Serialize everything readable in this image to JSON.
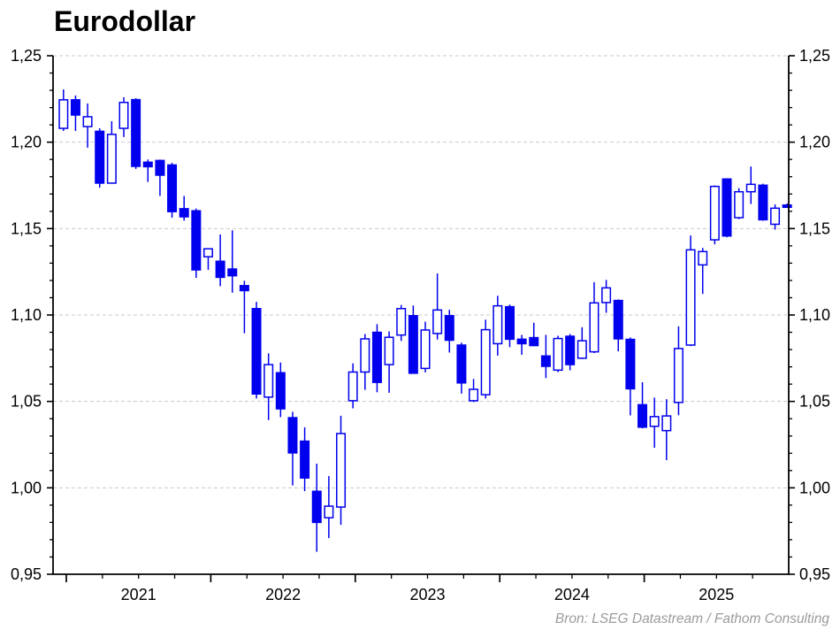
{
  "title": "Eurodollar",
  "source": "Bron: LSEG Datastream / Fathom Consulting",
  "colors": {
    "candle_blue": "#0000ee",
    "up_body_fill": "#ffffff",
    "grid": "#c9c9c9",
    "axis": "#000000",
    "label_text": "#000000",
    "source_text": "#9b9b9b",
    "background": "#ffffff"
  },
  "y_axis": {
    "min": 0.95,
    "max": 1.25,
    "major_step": 0.05,
    "minor_step": 0.01,
    "decimal_separator": ",",
    "major_labels": [
      "1,25",
      "1,20",
      "1,15",
      "1,10",
      "1,05",
      "1,00",
      "0,95"
    ],
    "sides": "both"
  },
  "x_axis": {
    "year_labels": [
      "2021",
      "2022",
      "2023",
      "2024",
      "2025"
    ],
    "minor_tick_interval_months": 3,
    "major_tick_interval_months": 12
  },
  "chart_data": {
    "type": "candlestick",
    "frequency": "monthly",
    "up_style": "hollow",
    "down_style": "filled",
    "title": "Eurodollar",
    "ylim": [
      0.95,
      1.25
    ],
    "grid": "dashed-horizontal",
    "legend": "none",
    "candles": {
      "columns": [
        "month",
        "open",
        "high",
        "low",
        "close"
      ],
      "rows": [
        [
          "2020-12",
          1.208,
          1.2305,
          1.2065,
          1.2245
        ],
        [
          "2021-01",
          1.2245,
          1.227,
          1.2065,
          1.2157
        ],
        [
          "2021-02",
          1.209,
          1.2224,
          1.1968,
          1.2147
        ],
        [
          "2021-03",
          1.2063,
          1.208,
          1.1737,
          1.1763
        ],
        [
          "2021-04",
          1.1763,
          1.2121,
          1.176,
          1.2045
        ],
        [
          "2021-05",
          1.208,
          1.226,
          1.203,
          1.223
        ],
        [
          "2021-06",
          1.2246,
          1.2254,
          1.1845,
          1.186
        ],
        [
          "2021-07",
          1.1884,
          1.19,
          1.177,
          1.1858
        ],
        [
          "2021-08",
          1.1894,
          1.1899,
          1.1689,
          1.1809
        ],
        [
          "2021-09",
          1.1868,
          1.188,
          1.1563,
          1.1598
        ],
        [
          "2021-10",
          1.1615,
          1.1689,
          1.1546,
          1.1568
        ],
        [
          "2021-11",
          1.1603,
          1.1616,
          1.1215,
          1.1261
        ],
        [
          "2021-12",
          1.1337,
          1.1386,
          1.1261,
          1.1383
        ],
        [
          "2022-01",
          1.1311,
          1.1466,
          1.1167,
          1.1218
        ],
        [
          "2022-02",
          1.1266,
          1.149,
          1.1129,
          1.1227
        ],
        [
          "2022-03",
          1.117,
          1.1198,
          1.0894,
          1.1141
        ],
        [
          "2022-04",
          1.1037,
          1.1076,
          1.0517,
          1.0543
        ],
        [
          "2022-05",
          1.0525,
          1.0778,
          1.0392,
          1.0713
        ],
        [
          "2022-06",
          1.0666,
          1.0725,
          1.0409,
          1.0457
        ],
        [
          "2022-07",
          1.0406,
          1.044,
          1.0014,
          1.0202
        ],
        [
          "2022-08",
          1.027,
          1.035,
          0.9981,
          1.0057
        ],
        [
          "2022-09",
          0.998,
          1.014,
          0.963,
          0.98
        ],
        [
          "2022-10",
          0.9827,
          1.0068,
          0.9709,
          0.9894
        ],
        [
          "2022-11",
          0.9889,
          1.0417,
          0.9786,
          1.0314
        ],
        [
          "2022-12",
          1.0504,
          1.072,
          1.046,
          1.067
        ],
        [
          "2023-01",
          1.067,
          1.089,
          1.0567,
          1.0862
        ],
        [
          "2023-02",
          1.09,
          1.0947,
          1.0553,
          1.061
        ],
        [
          "2023-03",
          1.0713,
          1.0905,
          1.055,
          1.0871
        ],
        [
          "2023-04",
          1.0884,
          1.1058,
          1.085,
          1.1037
        ],
        [
          "2023-05",
          1.0996,
          1.1055,
          1.066,
          1.0663
        ],
        [
          "2023-06",
          1.0691,
          1.0961,
          1.0668,
          1.0913
        ],
        [
          "2023-07",
          1.0893,
          1.124,
          1.0858,
          1.1029
        ],
        [
          "2023-08",
          1.0996,
          1.103,
          1.0783,
          1.0854
        ],
        [
          "2023-09",
          1.0826,
          1.084,
          1.0545,
          1.0607
        ],
        [
          "2023-10",
          1.0504,
          1.063,
          1.0496,
          1.057
        ],
        [
          "2023-11",
          1.0539,
          1.0973,
          1.0517,
          1.0915
        ],
        [
          "2023-12",
          1.0834,
          1.1111,
          1.0765,
          1.1053
        ],
        [
          "2024-01",
          1.1048,
          1.106,
          1.0814,
          1.086
        ],
        [
          "2024-02",
          1.086,
          1.0885,
          1.077,
          1.0834
        ],
        [
          "2024-03",
          1.0869,
          1.0955,
          1.082,
          1.0823
        ],
        [
          "2024-04",
          1.0763,
          1.0885,
          1.0635,
          1.0703
        ],
        [
          "2024-05",
          1.0681,
          1.088,
          1.067,
          1.0864
        ],
        [
          "2024-06",
          1.0877,
          1.089,
          1.068,
          1.0713
        ],
        [
          "2024-07",
          1.075,
          1.0929,
          1.0745,
          1.0851
        ],
        [
          "2024-08",
          1.0787,
          1.119,
          1.078,
          1.107
        ],
        [
          "2024-09",
          1.1072,
          1.1203,
          1.1013,
          1.1157
        ],
        [
          "2024-10",
          1.1084,
          1.109,
          1.079,
          1.0862
        ],
        [
          "2024-11",
          1.0859,
          1.087,
          1.0419,
          1.0573
        ],
        [
          "2024-12",
          1.0481,
          1.0611,
          1.0344,
          1.0351
        ],
        [
          "2025-01",
          1.0356,
          1.0522,
          1.0232,
          1.0412
        ],
        [
          "2025-02",
          1.0331,
          1.0513,
          1.016,
          1.0416
        ],
        [
          "2025-03",
          1.0494,
          1.0934,
          1.042,
          1.0806
        ],
        [
          "2025-04",
          1.0826,
          1.146,
          1.082,
          1.1377
        ],
        [
          "2025-05",
          1.129,
          1.1388,
          1.1122,
          1.1367
        ],
        [
          "2025-06",
          1.1435,
          1.175,
          1.1409,
          1.1744
        ],
        [
          "2025-07",
          1.1787,
          1.179,
          1.145,
          1.1457
        ],
        [
          "2025-08",
          1.1563,
          1.1734,
          1.1555,
          1.1713
        ],
        [
          "2025-09",
          1.1713,
          1.1859,
          1.1642,
          1.1756
        ],
        [
          "2025-10",
          1.1751,
          1.176,
          1.1545,
          1.1551
        ],
        [
          "2025-11",
          1.1525,
          1.164,
          1.1494,
          1.1618
        ],
        [
          "2025-12",
          1.1636,
          1.1645,
          1.1628,
          1.1636
        ]
      ]
    }
  }
}
